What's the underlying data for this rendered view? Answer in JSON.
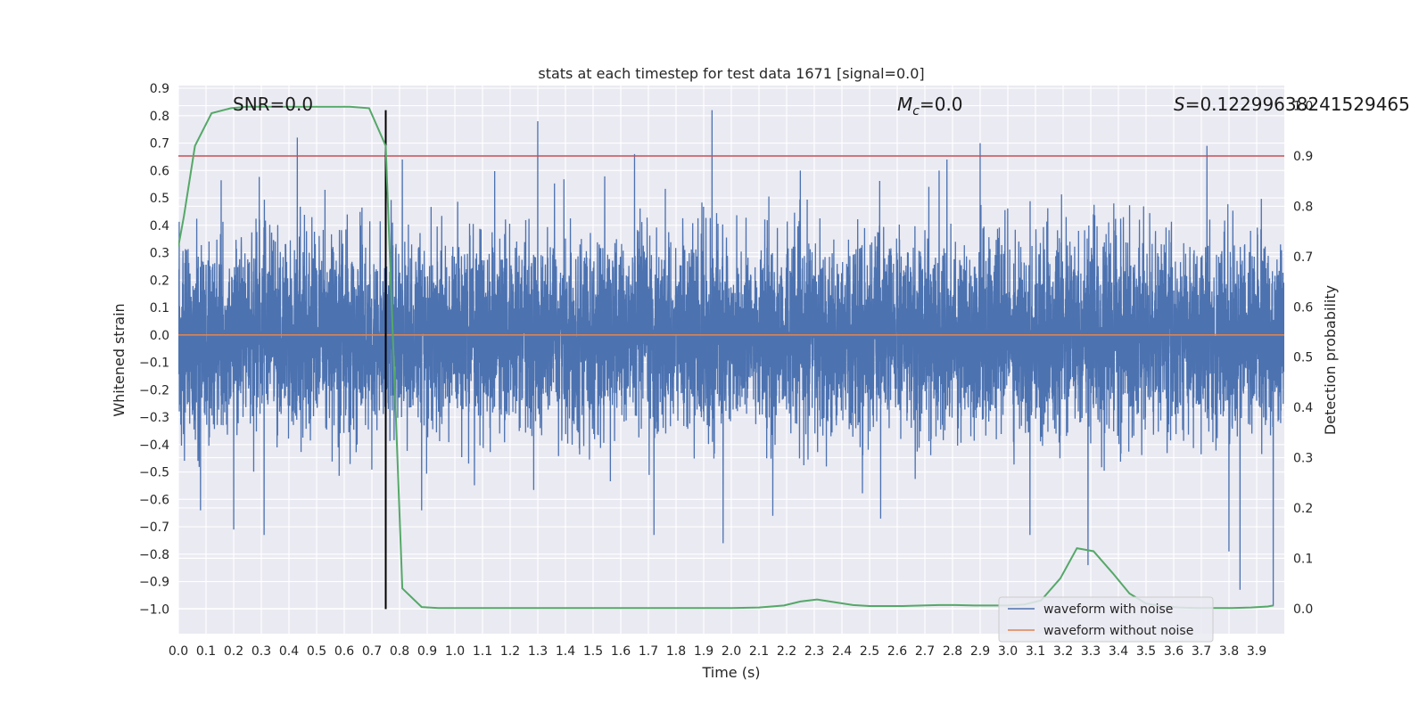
{
  "chart_data": {
    "type": "line",
    "title": "stats at each timestep for test data 1671 [signal=0.0]",
    "xlabel": "Time (s)",
    "ylabel": "Whitened strain",
    "y2label": "Detection probability",
    "xlim": [
      0.0,
      4.0
    ],
    "ylim": [
      -1.09,
      0.91
    ],
    "y2lim": [
      -0.05,
      1.04
    ],
    "x_ticks": [
      "0.0",
      "0.1",
      "0.2",
      "0.3",
      "0.4",
      "0.5",
      "0.6",
      "0.7",
      "0.8",
      "0.9",
      "1.0",
      "1.1",
      "1.2",
      "1.3",
      "1.4",
      "1.5",
      "1.6",
      "1.7",
      "1.8",
      "1.9",
      "2.0",
      "2.1",
      "2.2",
      "2.3",
      "2.4",
      "2.5",
      "2.6",
      "2.7",
      "2.8",
      "2.9",
      "3.0",
      "3.1",
      "3.2",
      "3.3",
      "3.4",
      "3.5",
      "3.6",
      "3.7",
      "3.8",
      "3.9"
    ],
    "y_ticks": [
      "0.9",
      "0.8",
      "0.7",
      "0.6",
      "0.5",
      "0.4",
      "0.3",
      "0.2",
      "0.1",
      "0.0",
      "−0.1",
      "−0.2",
      "−0.3",
      "−0.4",
      "−0.5",
      "−0.6",
      "−0.7",
      "−0.8",
      "−0.9",
      "−1.0"
    ],
    "y2_ticks": [
      "1.0",
      "0.9",
      "0.8",
      "0.7",
      "0.6",
      "0.5",
      "0.4",
      "0.3",
      "0.2",
      "0.1",
      "0.0"
    ],
    "annotations": {
      "snr": "SNR=0.0",
      "mc_symbol": "M",
      "mc_sub": "c",
      "mc_value": "=0.0",
      "s_symbol": "S",
      "s_value": "=0.12299638241529465"
    },
    "legend": {
      "position": "lower-right",
      "entries": [
        {
          "name": "waveform with noise",
          "color": "#4c72b0"
        },
        {
          "name": "waveform without noise",
          "color": "#dd8452"
        }
      ]
    },
    "grid": true,
    "colors": {
      "noise": "#4c72b0",
      "clean": "#dd8452",
      "probability": "#55a868",
      "threshold": "#c44e52",
      "marker": "#000000",
      "background": "#eaeaf2"
    },
    "series": [
      {
        "name": "waveform with noise",
        "kind": "noise",
        "sample_rate": 2048,
        "duration": 4.0,
        "std": 0.17,
        "peaks": [
          [
            0.43,
            0.72
          ],
          [
            0.75,
            0.65
          ],
          [
            0.81,
            0.64
          ],
          [
            1.3,
            0.78
          ],
          [
            1.65,
            0.66
          ],
          [
            1.93,
            0.82
          ],
          [
            2.9,
            0.7
          ],
          [
            2.78,
            0.64
          ],
          [
            3.72,
            0.69
          ],
          [
            3.96,
            0.64
          ],
          [
            0.08,
            -0.64
          ],
          [
            0.2,
            -0.71
          ],
          [
            0.31,
            -0.73
          ],
          [
            0.75,
            -0.61
          ],
          [
            0.88,
            -0.64
          ],
          [
            1.72,
            -0.73
          ],
          [
            1.97,
            -0.76
          ],
          [
            2.15,
            -0.66
          ],
          [
            2.54,
            -0.67
          ],
          [
            3.08,
            -0.73
          ],
          [
            3.29,
            -0.84
          ],
          [
            3.8,
            -0.79
          ],
          [
            3.84,
            -0.93
          ],
          [
            3.96,
            -0.99
          ]
        ]
      },
      {
        "name": "waveform without noise",
        "kind": "constant",
        "value": 0.0
      },
      {
        "name": "detection probability",
        "axis": "right",
        "x": [
          0.0,
          0.02,
          0.06,
          0.12,
          0.19,
          0.25,
          0.31,
          0.38,
          0.44,
          0.5,
          0.56,
          0.62,
          0.69,
          0.75,
          0.81,
          0.88,
          0.94,
          1.0,
          1.5,
          2.0,
          2.1,
          2.19,
          2.25,
          2.31,
          2.38,
          2.44,
          2.5,
          2.56,
          2.62,
          2.69,
          2.75,
          2.81,
          2.88,
          2.94,
          3.0,
          3.06,
          3.12,
          3.19,
          3.25,
          3.31,
          3.38,
          3.44,
          3.5,
          3.56,
          3.62,
          3.69,
          3.75,
          3.81,
          3.88,
          3.94,
          3.96
        ],
        "values": [
          0.72,
          0.78,
          0.92,
          0.985,
          0.995,
          0.998,
          0.998,
          0.998,
          0.998,
          0.998,
          0.998,
          0.998,
          0.995,
          0.92,
          0.04,
          0.003,
          0.001,
          0.001,
          0.001,
          0.001,
          0.002,
          0.006,
          0.014,
          0.018,
          0.012,
          0.007,
          0.005,
          0.005,
          0.005,
          0.006,
          0.007,
          0.007,
          0.006,
          0.006,
          0.006,
          0.008,
          0.016,
          0.06,
          0.12,
          0.114,
          0.07,
          0.03,
          0.01,
          0.004,
          0.002,
          0.001,
          0.001,
          0.001,
          0.002,
          0.004,
          0.006
        ]
      },
      {
        "name": "threshold",
        "axis": "right",
        "kind": "hline",
        "value": 0.9
      },
      {
        "name": "event marker",
        "kind": "vline",
        "x": 0.75,
        "y_range": [
          -1.0,
          0.82
        ]
      }
    ]
  }
}
